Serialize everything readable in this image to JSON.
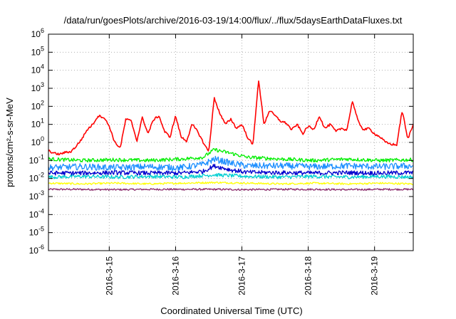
{
  "chart_data": {
    "type": "line",
    "title": "/data/run/goesPlots/archive/2016-03-19/14:00/flux/../flux/5daysEarthDataFluxes.txt",
    "xlabel": "Coordinated Universal Time (UTC)",
    "ylabel": "protons/cm²-s-sr-MeV",
    "yscale": "log",
    "ylim": [
      1e-06,
      1000000.0
    ],
    "y_ticks": [
      {
        "value": 1e-06,
        "base": "10",
        "exp": "-6"
      },
      {
        "value": 1e-05,
        "base": "10",
        "exp": "-5"
      },
      {
        "value": 0.0001,
        "base": "10",
        "exp": "-4"
      },
      {
        "value": 0.001,
        "base": "10",
        "exp": "-3"
      },
      {
        "value": 0.01,
        "base": "10",
        "exp": "-2"
      },
      {
        "value": 0.1,
        "base": "10",
        "exp": "-1"
      },
      {
        "value": 1,
        "base": "10",
        "exp": "0"
      },
      {
        "value": 10,
        "base": "10",
        "exp": "1"
      },
      {
        "value": 100,
        "base": "10",
        "exp": "2"
      },
      {
        "value": 1000,
        "base": "10",
        "exp": "3"
      },
      {
        "value": 10000,
        "base": "10",
        "exp": "4"
      },
      {
        "value": 100000,
        "base": "10",
        "exp": "5"
      },
      {
        "value": 1000000,
        "base": "10",
        "exp": "6"
      }
    ],
    "xlim": [
      "2016-03-14 02:00",
      "2016-03-19 14:00"
    ],
    "x_ticks": [
      "2016-3-15",
      "2016-3-16",
      "2016-3-17",
      "2016-3-18",
      "2016-3-19"
    ],
    "grid": true,
    "series": [
      {
        "color": "#ff0000",
        "x": [
          "2016-03-14 02:00",
          "2016-03-14 04:00",
          "2016-03-14 06:00",
          "2016-03-14 08:00",
          "2016-03-14 10:00",
          "2016-03-14 12:00",
          "2016-03-14 14:00",
          "2016-03-14 16:00",
          "2016-03-14 18:00",
          "2016-03-14 20:00",
          "2016-03-14 22:00",
          "2016-03-15 00:00",
          "2016-03-15 02:00",
          "2016-03-15 04:00",
          "2016-03-15 06:00",
          "2016-03-15 08:00",
          "2016-03-15 10:00",
          "2016-03-15 12:00",
          "2016-03-15 14:00",
          "2016-03-15 16:00",
          "2016-03-15 18:00",
          "2016-03-15 20:00",
          "2016-03-15 22:00",
          "2016-03-16 00:00",
          "2016-03-16 02:00",
          "2016-03-16 04:00",
          "2016-03-16 06:00",
          "2016-03-16 08:00",
          "2016-03-16 10:00",
          "2016-03-16 12:00",
          "2016-03-16 14:00",
          "2016-03-16 16:00",
          "2016-03-16 18:00",
          "2016-03-16 20:00",
          "2016-03-16 22:00",
          "2016-03-17 00:00",
          "2016-03-17 02:00",
          "2016-03-17 04:00",
          "2016-03-17 06:00",
          "2016-03-17 08:00",
          "2016-03-17 10:00",
          "2016-03-17 12:00",
          "2016-03-17 14:00",
          "2016-03-17 16:00",
          "2016-03-17 18:00",
          "2016-03-17 20:00",
          "2016-03-17 22:00",
          "2016-03-18 00:00",
          "2016-03-18 02:00",
          "2016-03-18 04:00",
          "2016-03-18 06:00",
          "2016-03-18 08:00",
          "2016-03-18 10:00",
          "2016-03-18 12:00",
          "2016-03-18 14:00",
          "2016-03-18 16:00",
          "2016-03-18 18:00",
          "2016-03-18 20:00",
          "2016-03-18 22:00",
          "2016-03-19 00:00",
          "2016-03-19 02:00",
          "2016-03-19 04:00",
          "2016-03-19 06:00",
          "2016-03-19 08:00",
          "2016-03-19 10:00",
          "2016-03-19 12:00",
          "2016-03-19 14:00"
        ],
        "values": [
          0.35,
          0.25,
          0.22,
          0.28,
          0.3,
          0.6,
          1.5,
          5,
          10,
          30,
          25,
          8,
          1,
          0.5,
          20,
          15,
          1.2,
          25,
          3,
          18,
          30,
          4,
          2,
          30,
          2,
          1.2,
          10,
          4,
          1,
          0.3,
          300,
          40,
          10,
          20,
          6,
          10,
          2,
          0.7,
          3000,
          10,
          60,
          30,
          15,
          12,
          5,
          10,
          3,
          8,
          5,
          30,
          6,
          10,
          4,
          6,
          5,
          200,
          15,
          5,
          6,
          3,
          2,
          1,
          0.8,
          0.7,
          60,
          1.5,
          10
        ]
      },
      {
        "color": "#00ee00",
        "x": [
          "2016-03-14 02:00",
          "2016-03-14 14:00",
          "2016-03-15 02:00",
          "2016-03-15 14:00",
          "2016-03-16 02:00",
          "2016-03-16 10:00",
          "2016-03-16 14:00",
          "2016-03-16 20:00",
          "2016-03-17 02:00",
          "2016-03-17 14:00",
          "2016-03-18 02:00",
          "2016-03-18 14:00",
          "2016-03-19 02:00",
          "2016-03-19 14:00"
        ],
        "values": [
          0.12,
          0.1,
          0.11,
          0.1,
          0.12,
          0.15,
          0.4,
          0.25,
          0.15,
          0.12,
          0.1,
          0.12,
          0.1,
          0.11
        ]
      },
      {
        "color": "#1e90ff",
        "x": [
          "2016-03-14 02:00",
          "2016-03-14 14:00",
          "2016-03-15 02:00",
          "2016-03-15 14:00",
          "2016-03-16 02:00",
          "2016-03-16 10:00",
          "2016-03-16 14:00",
          "2016-03-16 20:00",
          "2016-03-17 02:00",
          "2016-03-17 14:00",
          "2016-03-18 02:00",
          "2016-03-18 14:00",
          "2016-03-19 02:00",
          "2016-03-19 14:00"
        ],
        "values": [
          0.04,
          0.045,
          0.04,
          0.045,
          0.04,
          0.06,
          0.12,
          0.07,
          0.05,
          0.05,
          0.045,
          0.05,
          0.045,
          0.05
        ]
      },
      {
        "color": "#0000cd",
        "x": [
          "2016-03-14 02:00",
          "2016-03-14 14:00",
          "2016-03-15 02:00",
          "2016-03-15 14:00",
          "2016-03-16 02:00",
          "2016-03-16 10:00",
          "2016-03-16 14:00",
          "2016-03-16 20:00",
          "2016-03-17 02:00",
          "2016-03-17 14:00",
          "2016-03-18 02:00",
          "2016-03-18 14:00",
          "2016-03-19 02:00",
          "2016-03-19 14:00"
        ],
        "values": [
          0.02,
          0.02,
          0.021,
          0.02,
          0.02,
          0.025,
          0.05,
          0.03,
          0.022,
          0.021,
          0.02,
          0.021,
          0.02,
          0.021
        ]
      },
      {
        "color": "#00ced1",
        "x": [
          "2016-03-14 02:00",
          "2016-03-14 14:00",
          "2016-03-15 02:00",
          "2016-03-15 14:00",
          "2016-03-16 02:00",
          "2016-03-16 14:00",
          "2016-03-17 02:00",
          "2016-03-17 14:00",
          "2016-03-18 02:00",
          "2016-03-18 14:00",
          "2016-03-19 02:00",
          "2016-03-19 14:00"
        ],
        "values": [
          0.012,
          0.013,
          0.012,
          0.013,
          0.012,
          0.016,
          0.013,
          0.012,
          0.013,
          0.012,
          0.013,
          0.012
        ]
      },
      {
        "color": "#ffff00",
        "x": [
          "2016-03-14 02:00",
          "2016-03-14 14:00",
          "2016-03-15 02:00",
          "2016-03-15 14:00",
          "2016-03-16 02:00",
          "2016-03-16 14:00",
          "2016-03-17 02:00",
          "2016-03-17 14:00",
          "2016-03-18 02:00",
          "2016-03-18 14:00",
          "2016-03-19 02:00",
          "2016-03-19 14:00"
        ],
        "values": [
          0.0055,
          0.005,
          0.0055,
          0.005,
          0.0055,
          0.006,
          0.0055,
          0.005,
          0.0055,
          0.005,
          0.0055,
          0.005
        ]
      },
      {
        "color": "#8b2a6b",
        "x": [
          "2016-03-14 02:00",
          "2016-03-14 14:00",
          "2016-03-15 02:00",
          "2016-03-15 14:00",
          "2016-03-16 02:00",
          "2016-03-16 14:00",
          "2016-03-17 02:00",
          "2016-03-17 14:00",
          "2016-03-18 02:00",
          "2016-03-18 14:00",
          "2016-03-19 02:00",
          "2016-03-19 14:00"
        ],
        "values": [
          0.0025,
          0.0025,
          0.0024,
          0.0025,
          0.0025,
          0.0025,
          0.0024,
          0.0025,
          0.0025,
          0.0024,
          0.0025,
          0.0025
        ]
      }
    ]
  }
}
